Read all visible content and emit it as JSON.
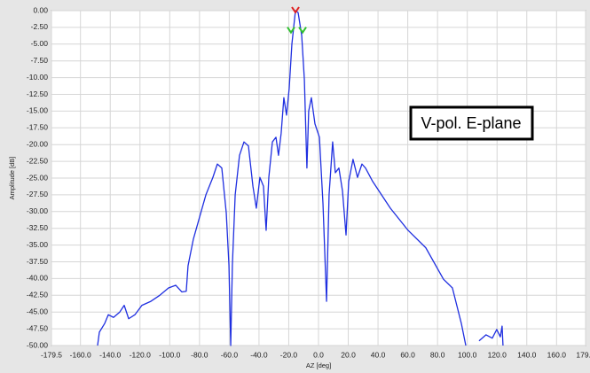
{
  "chart_data": {
    "type": "line",
    "xlabel": "AZ [deg]",
    "ylabel": "Amplitude [dB]",
    "annotation": "V-pol. E-plane",
    "xlim": [
      -179.5,
      179.5
    ],
    "ylim": [
      -50,
      0
    ],
    "grid": true,
    "xticks": [
      -179.5,
      {
        "value": -160,
        "label": "-160.0"
      },
      {
        "value": -140,
        "label": "-140.0"
      },
      {
        "value": -120,
        "label": "-120.0"
      },
      {
        "value": -100,
        "label": "-100.0"
      },
      {
        "value": -80,
        "label": "-80.0"
      },
      {
        "value": -60,
        "label": "-60.0"
      },
      {
        "value": -40,
        "label": "-40.0"
      },
      {
        "value": -20,
        "label": "-20.0"
      },
      {
        "value": 0,
        "label": "0.0"
      },
      {
        "value": 20,
        "label": "20.0"
      },
      {
        "value": 40,
        "label": "40.0"
      },
      {
        "value": 60,
        "label": "60.0"
      },
      {
        "value": 80,
        "label": "80.0"
      },
      {
        "value": 100,
        "label": "100.0"
      },
      {
        "value": 120,
        "label": "120.0"
      },
      {
        "value": 140,
        "label": "140.0"
      },
      {
        "value": 160,
        "label": "160.0"
      },
      179.5
    ],
    "yticks": [
      {
        "value": 0,
        "label": "0.00"
      },
      {
        "value": -2.5,
        "label": "-2.50"
      },
      {
        "value": -5,
        "label": "-5.00"
      },
      {
        "value": -7.5,
        "label": "-7.50"
      },
      {
        "value": -10,
        "label": "-10.00"
      },
      {
        "value": -12.5,
        "label": "-12.50"
      },
      {
        "value": -15,
        "label": "-15.00"
      },
      {
        "value": -17.5,
        "label": "-17.50"
      },
      {
        "value": -20,
        "label": "-20.00"
      },
      {
        "value": -22.5,
        "label": "-22.50"
      },
      {
        "value": -25,
        "label": "-25.00"
      },
      {
        "value": -27.5,
        "label": "-27.50"
      },
      {
        "value": -30,
        "label": "-30.00"
      },
      {
        "value": -32.5,
        "label": "-32.50"
      },
      {
        "value": -35,
        "label": "-35.00"
      },
      {
        "value": -37.5,
        "label": "-37.50"
      },
      {
        "value": -40,
        "label": "-40.00"
      },
      {
        "value": -42.5,
        "label": "-42.50"
      },
      {
        "value": -45,
        "label": "-45.00"
      },
      {
        "value": -47.5,
        "label": "-47.50"
      },
      {
        "value": -50,
        "label": "-50.00"
      }
    ],
    "x": [
      -148.5,
      -147.3,
      -143.7,
      -141.3,
      -137.8,
      -133.6,
      -130.6,
      -127.6,
      -123.4,
      -118.7,
      -112.7,
      -106.7,
      -100.8,
      -96,
      -91.8,
      -88.9,
      -87.7,
      -84.1,
      -79.9,
      -75.7,
      -71,
      -68,
      -65,
      -62,
      -60.2,
      -59,
      -57.9,
      -56,
      -53.1,
      -50.1,
      -47.1,
      -44.1,
      -41.8,
      -39.4,
      -37,
      -35.2,
      -33.4,
      -31,
      -28.6,
      -26.9,
      -25.1,
      -23.3,
      -21.5,
      -19.7,
      -17.9,
      -15.5,
      -13.7,
      -11.3,
      -9.5,
      -7.8,
      -6.6,
      -4.8,
      -2.4,
      0.6,
      3,
      5.4,
      7.1,
      9.5,
      11.3,
      13.7,
      16.1,
      18.5,
      20.3,
      23.2,
      26.2,
      29.2,
      31.6,
      36.4,
      48.3,
      60.2,
      72.1,
      84,
      90,
      96,
      99,
      103,
      107.9,
      112.6,
      116.8,
      119.8,
      122.2,
      123.4,
      124
    ],
    "series": [
      {
        "color": "#1f2fe0",
        "values": [
          -50,
          -48,
          -46.7,
          -45.4,
          -45.8,
          -45,
          -44,
          -46,
          -45.4,
          -44,
          -43.4,
          -42.5,
          -41.4,
          -41,
          -42,
          -41.9,
          -38.1,
          -34.1,
          -30.8,
          -27.5,
          -24.9,
          -22.9,
          -23.5,
          -30.2,
          -38,
          -50,
          -38,
          -27.5,
          -21.6,
          -19.6,
          -20.2,
          -26.2,
          -29.5,
          -24.9,
          -26.2,
          -32.8,
          -24.9,
          -19.6,
          -18.9,
          -21.6,
          -18.3,
          -13,
          -15.6,
          -11.6,
          -5,
          0,
          -0.3,
          -3.7,
          -10.3,
          -23.5,
          -15,
          -13,
          -16.9,
          -18.9,
          -28.8,
          -43.4,
          -27.5,
          -19.6,
          -24.2,
          -23.5,
          -26.9,
          -33.5,
          -25.5,
          -22.2,
          -24.9,
          -22.9,
          -23.5,
          -25.5,
          -29.5,
          -32.8,
          -35.4,
          -40.1,
          -41.4,
          -46.7,
          -50,
          null,
          -49.3,
          -48.4,
          -48.9,
          -47.6,
          -48.7,
          -47.1,
          -50
        ]
      }
    ],
    "markers": [
      {
        "x": -15.5,
        "y": 0,
        "color": "#e02020"
      },
      {
        "x": -18.5,
        "y": -3,
        "color": "#30c030"
      },
      {
        "x": -10.7,
        "y": -3,
        "color": "#30c030"
      }
    ]
  }
}
